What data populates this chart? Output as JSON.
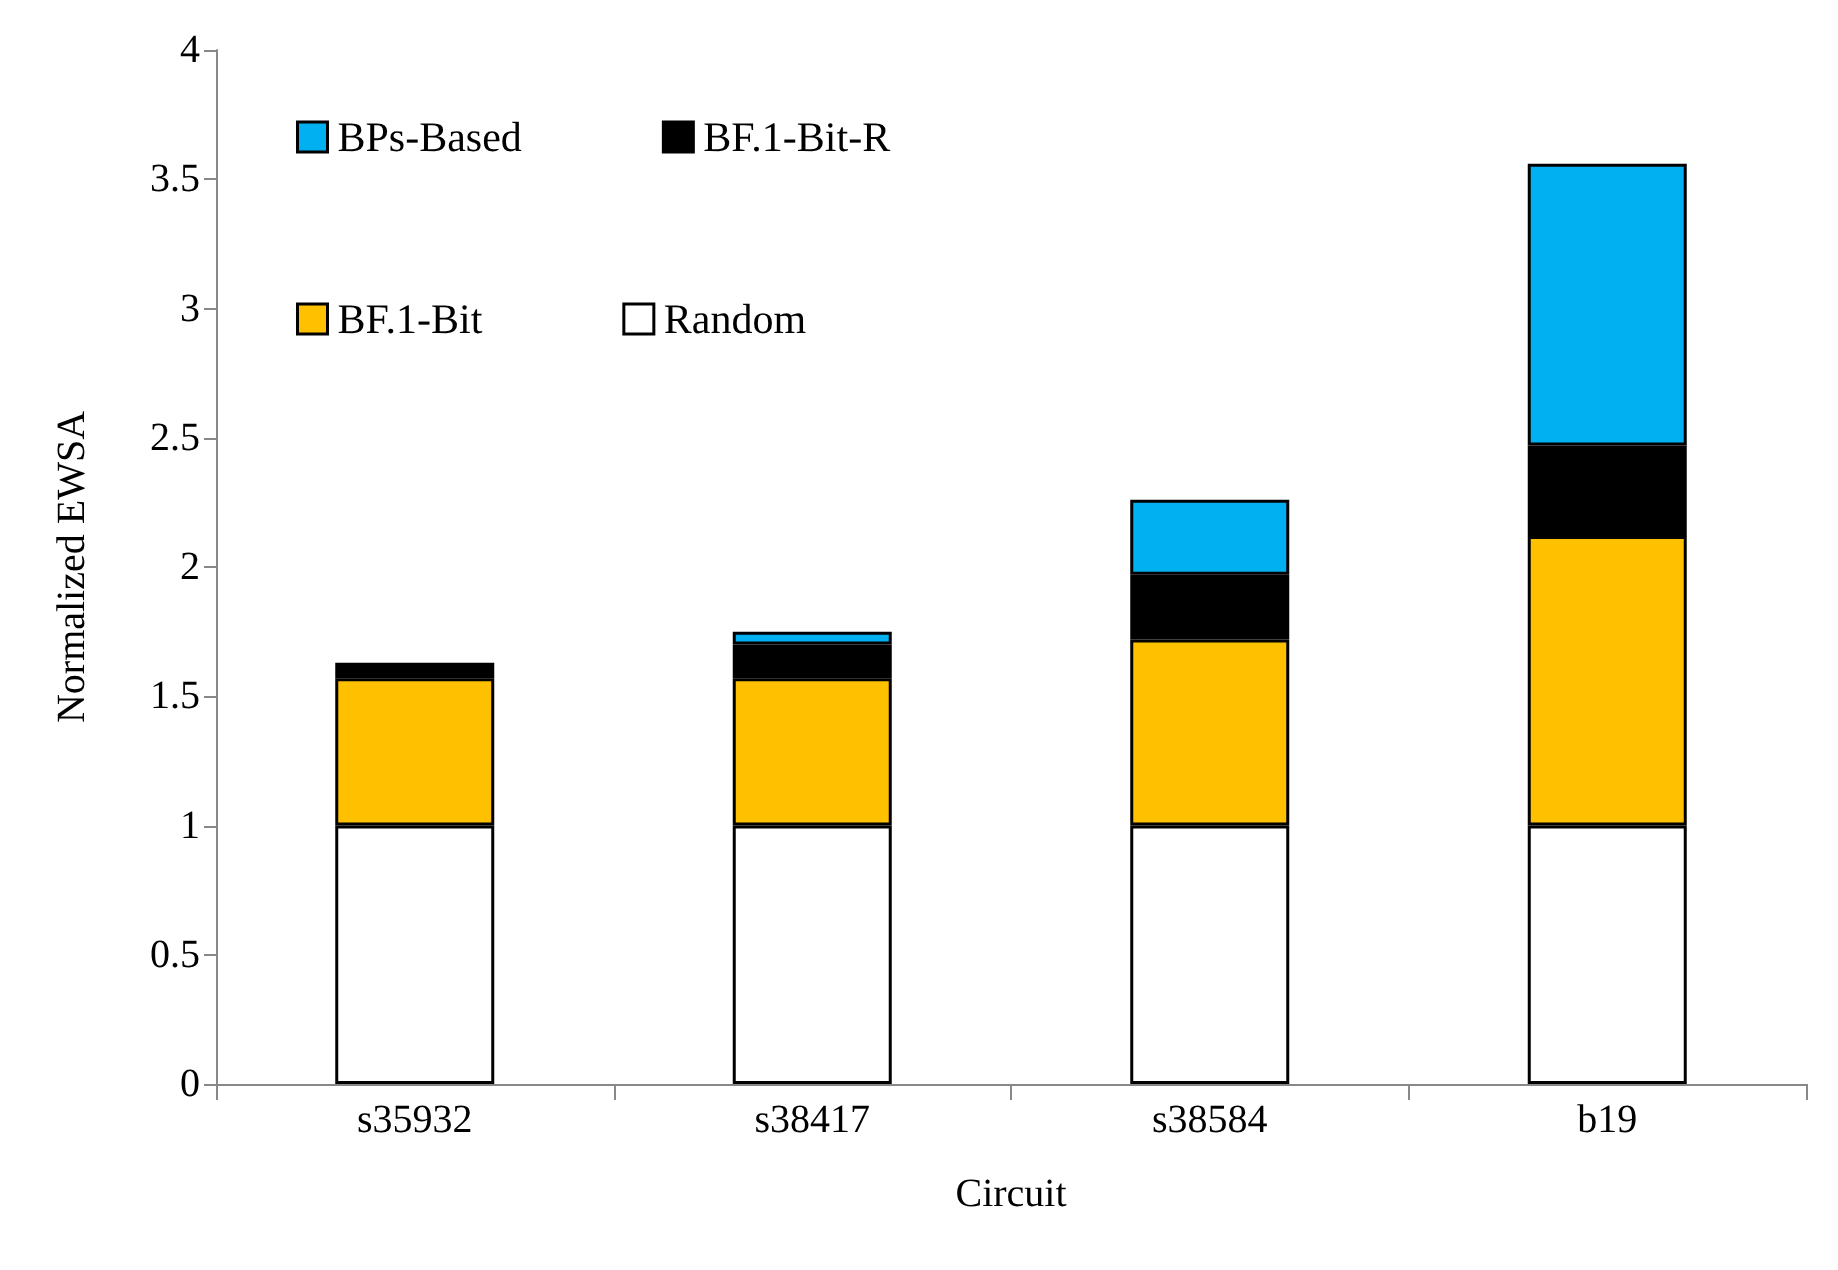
{
  "chart_data": {
    "type": "bar",
    "stacked": true,
    "xlabel": "Circuit",
    "ylabel": "Normalized EWSA",
    "categories": [
      "s35932",
      "s38417",
      "s38584",
      "b19"
    ],
    "series": [
      {
        "name": "Random",
        "color": "#ffffff",
        "values": [
          1,
          1,
          1,
          1
        ]
      },
      {
        "name": "BF.1-Bit",
        "color": "#ffc000",
        "values": [
          0.57,
          0.57,
          0.72,
          1.12
        ]
      },
      {
        "name": "BF.1-Bit-R",
        "color": "#000000",
        "values": [
          0.06,
          0.13,
          0.25,
          0.35
        ]
      },
      {
        "name": "BPs-Based",
        "color": "#00b0f0",
        "values": [
          null,
          0.05,
          0.29,
          1.09
        ]
      }
    ],
    "ylim": [
      0,
      4
    ],
    "yticks": [
      0,
      0.5,
      1,
      1.5,
      2,
      2.5,
      3,
      3.5,
      4
    ],
    "grid": false,
    "legend": "top left"
  }
}
